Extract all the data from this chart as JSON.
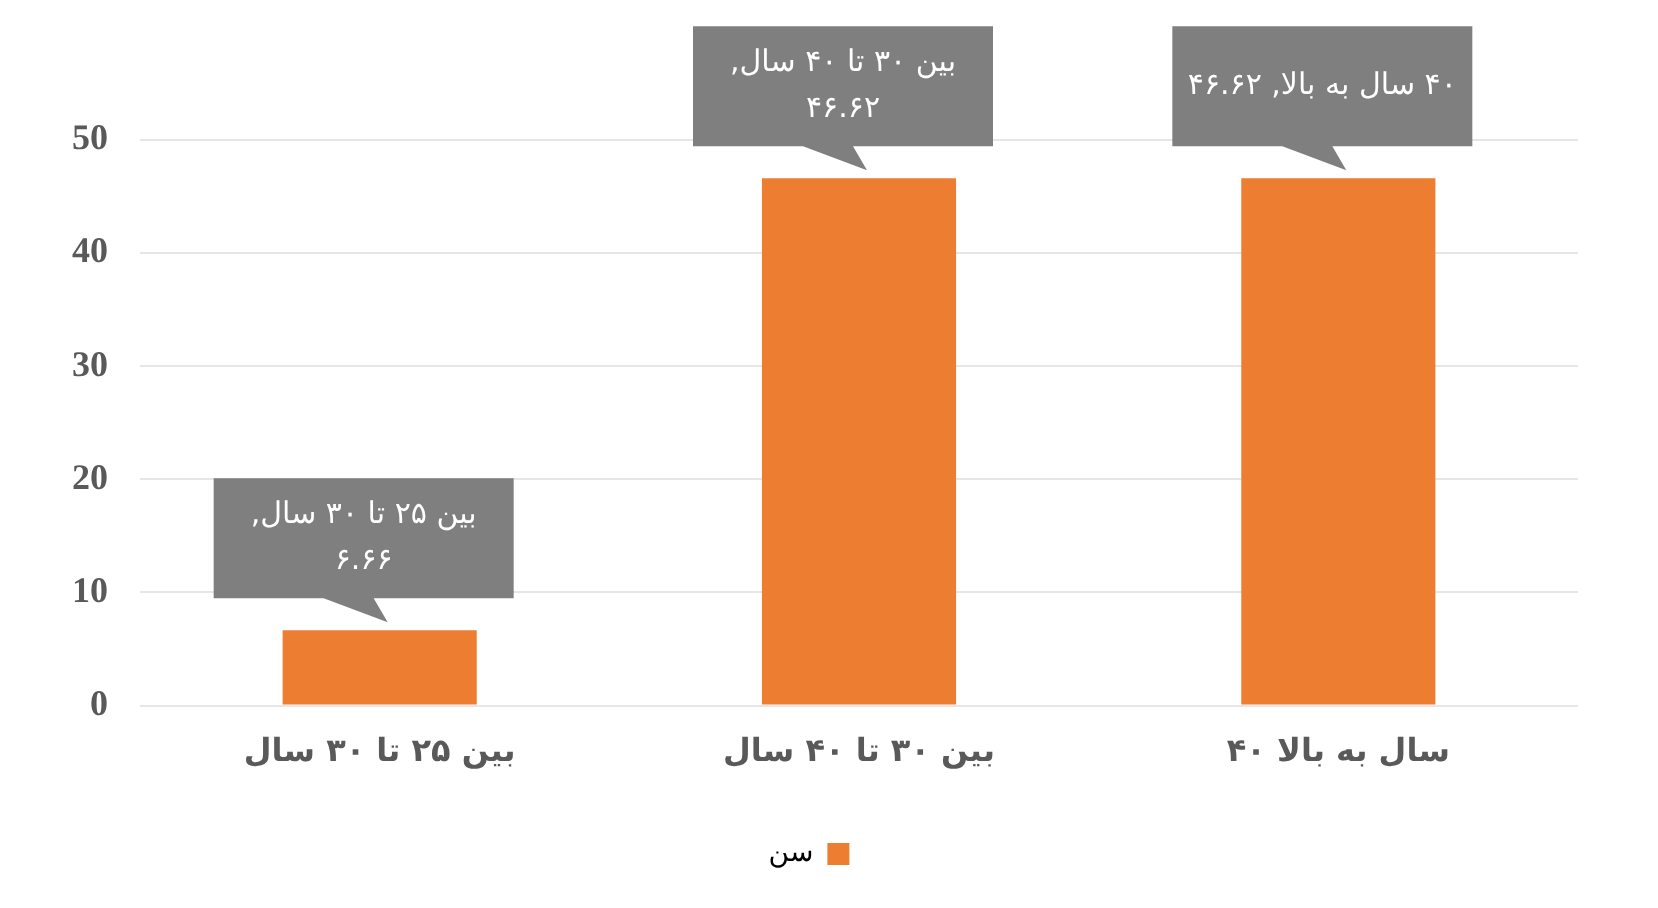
{
  "chart_data": {
    "type": "bar",
    "categories": [
      "بین ۲۵ تا ۳۰ سال",
      "بین ۳۰ تا ۴۰ سال",
      "۴۰ سال به بالا"
    ],
    "series": [
      {
        "name": "سن",
        "color": "#ed7d31",
        "values": [
          6.66,
          46.62,
          46.62
        ],
        "value_labels": [
          "بین ۲۵ تا ۳۰ سال, ۶.۶۶",
          "بین ۳۰ تا ۴۰ سال, ۴۶.۶۲",
          "۴۰ سال به بالا, ۴۶.۶۲"
        ]
      }
    ],
    "ylim": [
      0,
      50
    ],
    "yticks": [
      0,
      10,
      20,
      30,
      40,
      50
    ],
    "grid": "y",
    "legend": "bottom"
  }
}
